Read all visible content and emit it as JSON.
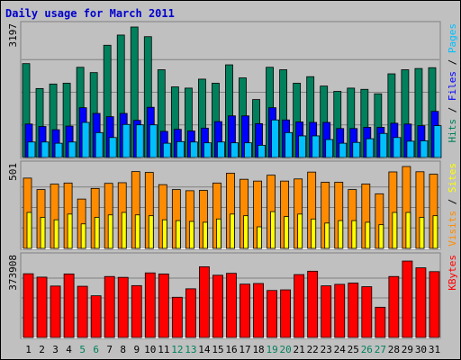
{
  "chart_data": {
    "title": "Daily usage for March 2011",
    "type": "bar",
    "days": [
      "1",
      "2",
      "3",
      "4",
      "5",
      "6",
      "7",
      "8",
      "9",
      "10",
      "11",
      "12",
      "13",
      "14",
      "15",
      "16",
      "17",
      "18",
      "19",
      "20",
      "21",
      "22",
      "23",
      "24",
      "25",
      "26",
      "27",
      "28",
      "29",
      "30",
      "31"
    ],
    "weekend_days": [
      "5",
      "6",
      "12",
      "13",
      "19",
      "20",
      "26",
      "27"
    ],
    "panels": [
      {
        "id": "top",
        "max_label": "3197",
        "ymax": 3197,
        "legend": [
          "Pages",
          "Files",
          "Hits"
        ],
        "series": [
          {
            "name": "Hits",
            "color": "#00805c",
            "values": [
              2300,
              1690,
              1800,
              1820,
              2210,
              2080,
              2750,
              3000,
              3197,
              2960,
              2150,
              1730,
              1700,
              1920,
              1820,
              2270,
              1950,
              1420,
              2210,
              2150,
              1820,
              1980,
              1750,
              1620,
              1700,
              1670,
              1560,
              2050,
              2150,
              2180,
              2200
            ]
          },
          {
            "name": "Files",
            "color": "#0000ff",
            "values": [
              820,
              760,
              680,
              770,
              1220,
              1080,
              1000,
              1080,
              910,
              1230,
              640,
              690,
              650,
              720,
              880,
              1020,
              1020,
              830,
              1220,
              920,
              870,
              860,
              860,
              710,
              710,
              740,
              740,
              840,
              820,
              780,
              1130
            ]
          },
          {
            "name": "Pages",
            "color": "#00bfff",
            "values": [
              380,
              380,
              350,
              380,
              860,
              610,
              490,
              810,
              800,
              800,
              350,
              390,
              380,
              360,
              380,
              360,
              360,
              300,
              920,
              610,
              530,
              530,
              440,
              350,
              370,
              460,
              590,
              490,
              400,
              410,
              780
            ]
          }
        ]
      },
      {
        "id": "middle",
        "max_label": "501",
        "ymax": 501,
        "legend": [
          "Sites",
          "Visits"
        ],
        "series": [
          {
            "name": "Visits",
            "color": "#ff8c00",
            "values": [
              430,
              360,
              393,
              400,
              302,
              367,
              398,
              402,
              470,
              465,
              390,
              360,
              353,
              355,
              400,
              460,
              423,
              412,
              448,
              412,
              425,
              467,
              405,
              405,
              360,
              394,
              334,
              468,
              501,
              469,
              454
            ]
          },
          {
            "name": "Sites",
            "color": "#ffff00",
            "values": [
              220,
              190,
              175,
              210,
              150,
              190,
              205,
              220,
              205,
              200,
              175,
              170,
              165,
              160,
              180,
              210,
              200,
              132,
              225,
              195,
              210,
              180,
              155,
              170,
              170,
              160,
              145,
              220,
              220,
              190,
              200
            ]
          }
        ]
      },
      {
        "id": "bottom",
        "max_label": "373908",
        "ymax": 373908,
        "legend": [
          "KBytes"
        ],
        "series": [
          {
            "name": "KBytes",
            "color": "#ff0000",
            "values": [
              301000,
              285000,
              243000,
              300000,
              242000,
              197000,
              288000,
              284000,
              245000,
              305000,
              300000,
              190000,
              230000,
              334000,
              294000,
              303000,
              252000,
              255000,
              222000,
              225000,
              297000,
              313000,
              244000,
              251000,
              257000,
              240000,
              143000,
              288000,
              361000,
              329000,
              311000
            ]
          }
        ]
      }
    ]
  }
}
